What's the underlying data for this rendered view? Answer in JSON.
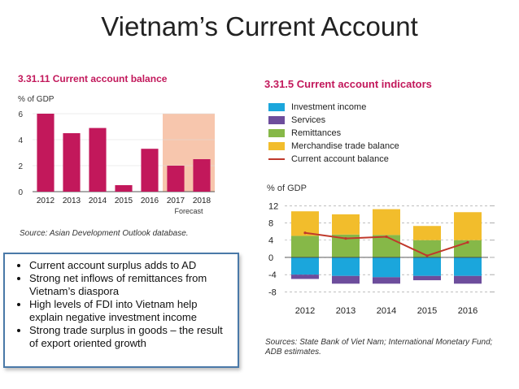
{
  "slide": {
    "title": "Vietnam’s Current Account",
    "bullets": [
      "Current account surplus adds to AD",
      "Strong net inflows of remittances from Vietnam’s diaspora",
      "High levels of FDI into Vietnam help explain negative investment income",
      "Strong trade surplus in goods – the result of export oriented growth"
    ]
  },
  "colors": {
    "bar_magenta": "#c2185b",
    "forecast_shade": "#f7c6ad",
    "investment_income": "#1ba6dc",
    "services": "#6d4d9c",
    "remittances": "#86b848",
    "merchandise": "#f2bd2c",
    "current_account_line": "#c0392b"
  },
  "chart_data": [
    {
      "type": "bar",
      "title": "3.31.11  Current account balance",
      "ylabel": "% of GDP",
      "categories": [
        "2012",
        "2013",
        "2014",
        "2015",
        "2016",
        "2017",
        "2018"
      ],
      "values": [
        6.0,
        4.5,
        4.9,
        0.5,
        3.3,
        2.0,
        2.5
      ],
      "ylim": [
        0,
        6
      ],
      "yticks": [
        "0",
        "2",
        "4",
        "6"
      ],
      "forecast_categories": [
        "2017",
        "2018"
      ],
      "forecast_label": "Forecast",
      "source": "Source: Asian Development Outlook database."
    },
    {
      "type": "bar",
      "title": "3.31.5  Current account indicators",
      "ylabel": "% of GDP",
      "stacked": true,
      "categories": [
        "2012",
        "2013",
        "2014",
        "2015",
        "2016"
      ],
      "ylim": [
        -10,
        13
      ],
      "yticks": [
        "12",
        "8",
        "4",
        "0",
        "-4",
        "-8"
      ],
      "series": [
        {
          "name": "Investment income",
          "values": [
            -4.0,
            -4.3,
            -4.6,
            -4.3,
            -4.3
          ]
        },
        {
          "name": "Services",
          "values": [
            -1.0,
            -1.8,
            -1.5,
            -1.0,
            -1.8
          ]
        },
        {
          "name": "Remittances",
          "values": [
            5.0,
            5.3,
            5.2,
            4.0,
            4.0
          ]
        },
        {
          "name": "Merchandise trade balance",
          "values": [
            5.7,
            4.7,
            6.0,
            3.3,
            6.5
          ]
        },
        {
          "name": "Current account balance",
          "values": [
            5.7,
            4.4,
            4.8,
            0.4,
            3.5
          ],
          "kind": "line"
        }
      ],
      "source": "Sources: State Bank of Viet Nam; International Monetary Fund; ADB estimates."
    }
  ]
}
